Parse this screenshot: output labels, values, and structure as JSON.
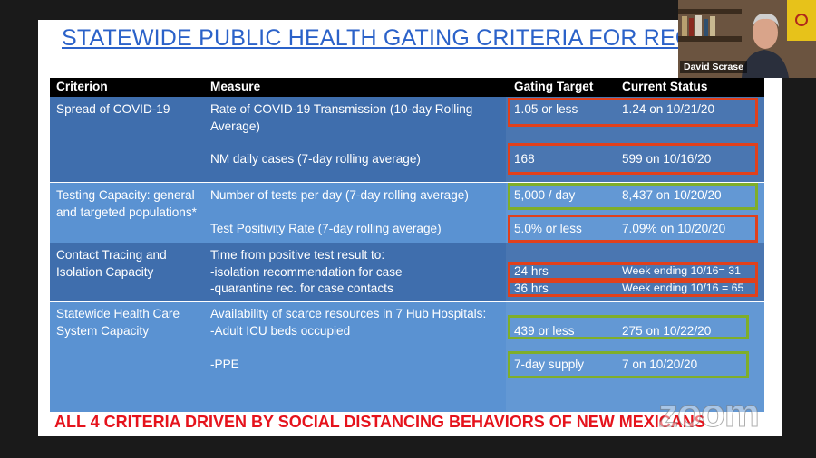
{
  "slide": {
    "title": "STATEWIDE PUBLIC HEALTH GATING CRITERIA FOR REO",
    "table": {
      "header": [
        "Criterion",
        "Measure",
        "Gating Target",
        "Current Status"
      ],
      "groups": [
        {
          "criterion": "Spread of COVID-19",
          "items": [
            {
              "measure": [
                "Rate of COVID-19 Transmission (10-day Rolling",
                "Average)"
              ],
              "target": "1.05 or less",
              "status": "1.24 on 10/21/20",
              "outline": "#e0401c"
            },
            {
              "measure": [
                "NM daily cases (7-day rolling average)"
              ],
              "target": "168",
              "status": "599 on 10/16/20",
              "outline": "#e0401c"
            }
          ]
        },
        {
          "criterion": "Testing Capacity: general and targeted populations*",
          "items": [
            {
              "measure": [
                "Number of tests per day (7-day rolling average)"
              ],
              "target": "5,000 / day",
              "status": "8,437 on 10/20/20",
              "outline": "#7fae2a"
            },
            {
              "measure": [
                "Test Positivity Rate (7-day rolling average)"
              ],
              "target": "5.0% or less",
              "status": "7.09% on 10/20/20",
              "outline": "#e0401c"
            }
          ]
        },
        {
          "criterion": "Contact Tracing and Isolation Capacity",
          "items": [
            {
              "measure": [
                "Time from positive test result to:",
                "-isolation recommendation for case"
              ],
              "target": "24 hrs",
              "status": "Week ending 10/16= 31",
              "outline": "#e0401c"
            },
            {
              "measure": [
                "-quarantine rec. for case contacts"
              ],
              "target": "36 hrs",
              "status": "Week ending 10/16 = 65",
              "outline": "#e0401c"
            }
          ]
        },
        {
          "criterion": "Statewide Health Care System Capacity",
          "items": [
            {
              "measure": [
                "Availability of scarce resources in 7 Hub Hospitals:",
                "-Adult ICU beds occupied"
              ],
              "target": "439 or less",
              "status": "275 on 10/22/20",
              "outline": "#7fae2a"
            },
            {
              "measure": [
                "-PPE"
              ],
              "target": "7-day supply",
              "status": "7  on 10/20/20",
              "outline": "#7fae2a"
            }
          ]
        }
      ]
    },
    "footer": "ALL 4 CRITERIA DRIVEN BY SOCIAL DISTANCING BEHAVIORS OF NEW MEXICANS"
  },
  "video": {
    "participant": "David Scrase",
    "watermark": "zoom"
  }
}
